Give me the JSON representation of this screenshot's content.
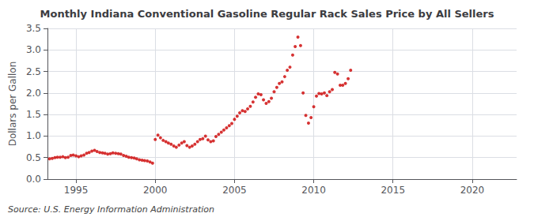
{
  "chart_data": {
    "type": "scatter",
    "title": "Monthly Indiana Conventional Gasoline Regular Rack Sales Price by All Sellers",
    "ylabel": "Dollars per Gallon",
    "annotations": [
      "Source: U.S. Energy Information Administration"
    ],
    "color": "#CC0000",
    "grid": true,
    "xlim": [
      1993.2,
      2022.8
    ],
    "xticks": [
      1995,
      2000,
      2005,
      2010,
      2015,
      2020
    ],
    "ylim": [
      0.0,
      3.5
    ],
    "yticks": [
      {
        "value": 0.0,
        "label": "0.0"
      },
      0.5,
      {
        "value": 1.0,
        "label": "1.0"
      },
      1.5,
      {
        "value": 2.0,
        "label": "2.0"
      },
      2.5,
      {
        "value": 3.0,
        "label": "3.0"
      },
      3.5
    ],
    "x": [
      1993.33,
      1993.5,
      1993.67,
      1993.83,
      1994.0,
      1994.17,
      1994.33,
      1994.5,
      1994.67,
      1994.83,
      1995.0,
      1995.17,
      1995.33,
      1995.5,
      1995.67,
      1995.83,
      1996.0,
      1996.17,
      1996.33,
      1996.5,
      1996.67,
      1996.83,
      1997.0,
      1997.17,
      1997.33,
      1997.5,
      1997.67,
      1997.83,
      1998.0,
      1998.17,
      1998.33,
      1998.5,
      1998.67,
      1998.83,
      1999.0,
      1999.17,
      1999.33,
      1999.5,
      1999.67,
      1999.83,
      2000.0,
      2000.17,
      2000.33,
      2000.5,
      2000.67,
      2000.83,
      2001.0,
      2001.17,
      2001.33,
      2001.5,
      2001.67,
      2001.83,
      2002.0,
      2002.17,
      2002.33,
      2002.5,
      2002.67,
      2002.83,
      2003.0,
      2003.17,
      2003.33,
      2003.5,
      2003.67,
      2003.83,
      2004.0,
      2004.17,
      2004.33,
      2004.5,
      2004.67,
      2004.83,
      2005.0,
      2005.17,
      2005.33,
      2005.5,
      2005.67,
      2005.83,
      2006.0,
      2006.17,
      2006.33,
      2006.5,
      2006.67,
      2006.83,
      2007.0,
      2007.17,
      2007.33,
      2007.5,
      2007.67,
      2007.83,
      2008.0,
      2008.17,
      2008.33,
      2008.5,
      2008.67,
      2008.83,
      2009.0,
      2009.17,
      2009.33,
      2009.5,
      2009.67,
      2009.83,
      2010.0,
      2010.17,
      2010.33,
      2010.5,
      2010.67,
      2010.83,
      2011.0,
      2011.17,
      2011.33,
      2011.5,
      2011.67,
      2011.83,
      2012.0,
      2012.17,
      2012.33
    ],
    "values": [
      0.47,
      0.48,
      0.5,
      0.51,
      0.51,
      0.52,
      0.5,
      0.51,
      0.55,
      0.56,
      0.54,
      0.52,
      0.54,
      0.56,
      0.6,
      0.62,
      0.65,
      0.67,
      0.64,
      0.62,
      0.61,
      0.6,
      0.58,
      0.59,
      0.61,
      0.6,
      0.59,
      0.58,
      0.55,
      0.53,
      0.51,
      0.5,
      0.49,
      0.47,
      0.45,
      0.44,
      0.43,
      0.42,
      0.4,
      0.37,
      0.92,
      1.02,
      0.96,
      0.9,
      0.87,
      0.84,
      0.81,
      0.77,
      0.74,
      0.79,
      0.84,
      0.87,
      0.78,
      0.74,
      0.77,
      0.81,
      0.87,
      0.92,
      0.94,
      1.0,
      0.91,
      0.87,
      0.89,
      0.99,
      1.04,
      1.09,
      1.14,
      1.19,
      1.24,
      1.29,
      1.39,
      1.46,
      1.54,
      1.59,
      1.57,
      1.63,
      1.69,
      1.79,
      1.9,
      1.98,
      1.96,
      1.84,
      1.76,
      1.8,
      1.88,
      2.03,
      2.13,
      2.22,
      2.26,
      2.38,
      2.53,
      2.6,
      2.88,
      3.08,
      3.3,
      3.1,
      2.0,
      1.48,
      1.3,
      1.43,
      1.68,
      1.93,
      1.99,
      1.98,
      2.0,
      1.94,
      2.03,
      2.08,
      2.48,
      2.44,
      2.18,
      2.18,
      2.22,
      2.33,
      2.53
    ]
  }
}
